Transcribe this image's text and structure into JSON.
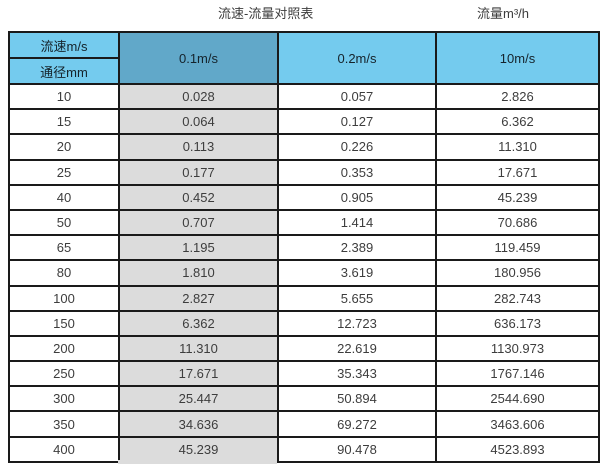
{
  "titles": {
    "main": "流速-流量对照表",
    "unit": "流量m³/h"
  },
  "colors": {
    "background": "#ffffff",
    "header_blue": "#74cbee",
    "header_dark_blue": "#61a8c9",
    "highlight_gray": "#dcdcdc",
    "border": "#1a1a1a",
    "text": "#3d3d3d",
    "title_text": "#3d3d3d"
  },
  "chart_data": {
    "type": "table",
    "title": "流速-流量对照表",
    "unit_label": "流量m³/h",
    "corner": {
      "top": "流速m/s",
      "bottom": "通径mm"
    },
    "columns": [
      "0.1m/s",
      "0.2m/s",
      "10m/s"
    ],
    "highlighted_column": "0.1m/s",
    "rows": [
      {
        "diameter": "10",
        "values": [
          "0.028",
          "0.057",
          "2.826"
        ]
      },
      {
        "diameter": "15",
        "values": [
          "0.064",
          "0.127",
          "6.362"
        ]
      },
      {
        "diameter": "20",
        "values": [
          "0.113",
          "0.226",
          "11.310"
        ]
      },
      {
        "diameter": "25",
        "values": [
          "0.177",
          "0.353",
          "17.671"
        ]
      },
      {
        "diameter": "40",
        "values": [
          "0.452",
          "0.905",
          "45.239"
        ]
      },
      {
        "diameter": "50",
        "values": [
          "0.707",
          "1.414",
          "70.686"
        ]
      },
      {
        "diameter": "65",
        "values": [
          "1.195",
          "2.389",
          "119.459"
        ]
      },
      {
        "diameter": "80",
        "values": [
          "1.810",
          "3.619",
          "180.956"
        ]
      },
      {
        "diameter": "100",
        "values": [
          "2.827",
          "5.655",
          "282.743"
        ]
      },
      {
        "diameter": "150",
        "values": [
          "6.362",
          "12.723",
          "636.173"
        ]
      },
      {
        "diameter": "200",
        "values": [
          "11.310",
          "22.619",
          "1130.973"
        ]
      },
      {
        "diameter": "250",
        "values": [
          "17.671",
          "35.343",
          "1767.146"
        ]
      },
      {
        "diameter": "300",
        "values": [
          "25.447",
          "50.894",
          "2544.690"
        ]
      },
      {
        "diameter": "350",
        "values": [
          "34.636",
          "69.272",
          "3463.606"
        ]
      },
      {
        "diameter": "400",
        "values": [
          "45.239",
          "90.478",
          "4523.893"
        ]
      }
    ]
  }
}
